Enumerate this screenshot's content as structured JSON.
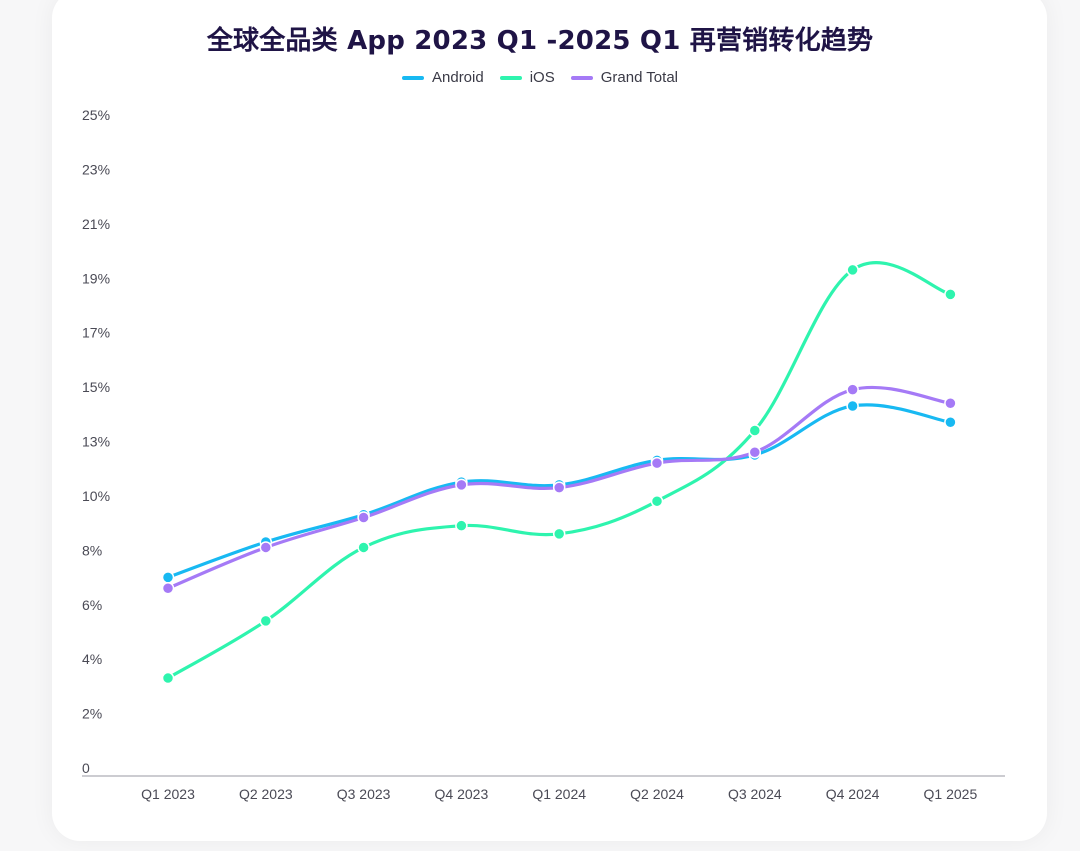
{
  "chart_data": {
    "type": "line",
    "title": "全球全品类 App 2023 Q1 -2025 Q1 再营销转化趋势",
    "xlabel": "",
    "ylabel": "",
    "categories": [
      "Q1 2023",
      "Q2 2023",
      "Q3 2023",
      "Q4 2023",
      "Q1 2024",
      "Q2 2024",
      "Q3 2024",
      "Q4 2024",
      "Q1 2025"
    ],
    "y_tick_labels": [
      "0",
      "2%",
      "4%",
      "6%",
      "8%",
      "10%",
      "13%",
      "15%",
      "17%",
      "19%",
      "21%",
      "23%",
      "25%"
    ],
    "ylim": [
      0,
      24
    ],
    "legend_position": "top-center",
    "grid": false,
    "series": [
      {
        "name": "Android",
        "color": "#18b9f2",
        "values": [
          7.3,
          8.6,
          9.6,
          10.8,
          10.7,
          11.6,
          11.8,
          13.6,
          13.0
        ]
      },
      {
        "name": "iOS",
        "color": "#2ef4ae",
        "values": [
          3.6,
          5.7,
          8.4,
          9.2,
          8.9,
          10.1,
          12.7,
          18.6,
          17.7
        ]
      },
      {
        "name": "Grand Total",
        "color": "#a57af6",
        "values": [
          6.9,
          8.4,
          9.5,
          10.7,
          10.6,
          11.5,
          11.9,
          14.2,
          13.7
        ]
      }
    ]
  }
}
